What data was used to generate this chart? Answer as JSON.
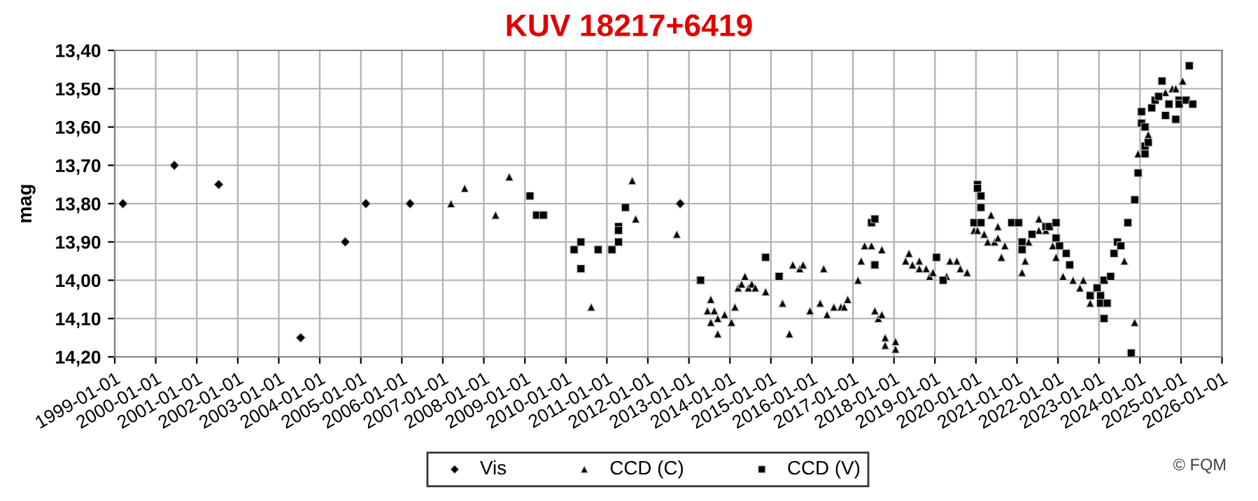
{
  "chart_data": {
    "type": "scatter",
    "title": "KUV 18217+6419",
    "ylabel": "mag",
    "xlim": [
      "1999-01-01",
      "2026-01-01"
    ],
    "xticks": [
      "1999-01-01",
      "2000-01-01",
      "2001-01-01",
      "2002-01-01",
      "2003-01-01",
      "2004-01-01",
      "2005-01-01",
      "2006-01-01",
      "2007-01-01",
      "2008-01-01",
      "2009-01-01",
      "2010-01-01",
      "2011-01-01",
      "2012-01-01",
      "2013-01-01",
      "2014-01-01",
      "2015-01-01",
      "2016-01-01",
      "2017-01-01",
      "2018-01-01",
      "2019-01-01",
      "2020-01-01",
      "2021-01-01",
      "2022-01-01",
      "2023-01-01",
      "2024-01-01",
      "2025-01-01",
      "2026-01-01"
    ],
    "ylim": [
      14.2,
      13.4
    ],
    "yticks": [
      {
        "value": 13.4,
        "label": "13,40"
      },
      {
        "value": 13.5,
        "label": "13,50"
      },
      {
        "value": 13.6,
        "label": "13,60"
      },
      {
        "value": 13.7,
        "label": "13,70"
      },
      {
        "value": 13.8,
        "label": "13,80"
      },
      {
        "value": 13.9,
        "label": "13,90"
      },
      {
        "value": 14.0,
        "label": "14,00"
      },
      {
        "value": 14.1,
        "label": "14,10"
      },
      {
        "value": 14.2,
        "label": "14,20"
      }
    ],
    "grid": true,
    "legend": "bottom",
    "annotations": [
      "© FQM"
    ],
    "series": [
      {
        "name": "Vis",
        "color": "#000000",
        "marker": "diamond",
        "x": [
          "1999-03",
          "2000-06",
          "2001-07",
          "2003-07",
          "2004-08",
          "2005-02",
          "2006-03",
          "2012-10"
        ],
        "values": [
          13.8,
          13.7,
          13.75,
          14.15,
          13.9,
          13.8,
          13.8,
          13.8
        ]
      },
      {
        "name": "CCD (C)",
        "color": "#000000",
        "marker": "triangle",
        "x": [
          "2007-03",
          "2007-07",
          "2008-04",
          "2008-08",
          "2010-08",
          "2011-08",
          "2011-09",
          "2012-09",
          "2013-06",
          "2013-07",
          "2013-07",
          "2013-08",
          "2013-09",
          "2013-09",
          "2013-11",
          "2014-01",
          "2014-02",
          "2014-03",
          "2014-04",
          "2014-05",
          "2014-06",
          "2014-07",
          "2014-08",
          "2014-11",
          "2015-04",
          "2015-06",
          "2015-07",
          "2015-09",
          "2015-10",
          "2015-12",
          "2016-03",
          "2016-04",
          "2016-05",
          "2016-07",
          "2016-09",
          "2016-10",
          "2016-11",
          "2017-02",
          "2017-03",
          "2017-04",
          "2017-06",
          "2017-07",
          "2017-08",
          "2017-09",
          "2017-09",
          "2017-10",
          "2017-10",
          "2018-01",
          "2018-01",
          "2018-04",
          "2018-05",
          "2018-06",
          "2018-08",
          "2018-08",
          "2018-10",
          "2018-11",
          "2018-12",
          "2019-04",
          "2019-05",
          "2019-07",
          "2019-08",
          "2019-10",
          "2019-12",
          "2020-01",
          "2020-03",
          "2020-04",
          "2020-05",
          "2020-06",
          "2020-07",
          "2020-07",
          "2020-08",
          "2020-09",
          "2021-02",
          "2021-03",
          "2021-04",
          "2021-07",
          "2021-07",
          "2021-09",
          "2021-11",
          "2021-12",
          "2022-02",
          "2022-05",
          "2022-07",
          "2022-08",
          "2022-10",
          "2023-08",
          "2023-11",
          "2023-12",
          "2024-03",
          "2024-08",
          "2024-10",
          "2024-11",
          "2025-01"
        ],
        "values": [
          13.8,
          13.76,
          13.83,
          13.73,
          14.07,
          13.74,
          13.84,
          13.88,
          14.08,
          14.11,
          14.05,
          14.08,
          14.14,
          14.1,
          14.09,
          14.11,
          14.07,
          14.02,
          14.01,
          13.99,
          14.02,
          14.01,
          14.02,
          14.03,
          14.06,
          14.14,
          13.96,
          13.97,
          13.96,
          14.08,
          14.06,
          13.97,
          14.09,
          14.07,
          14.07,
          14.07,
          14.05,
          14.0,
          13.95,
          13.91,
          13.91,
          14.08,
          14.1,
          13.92,
          14.09,
          14.17,
          14.15,
          14.16,
          14.18,
          13.95,
          13.93,
          13.96,
          13.97,
          13.95,
          13.97,
          13.99,
          13.98,
          13.99,
          13.95,
          13.95,
          13.97,
          13.98,
          13.87,
          13.87,
          13.88,
          13.9,
          13.83,
          13.9,
          13.86,
          13.89,
          13.94,
          13.91,
          13.98,
          13.95,
          13.9,
          13.84,
          13.87,
          13.87,
          13.91,
          13.94,
          13.99,
          14.0,
          14.02,
          14.0,
          14.06,
          13.95,
          14.11,
          13.67,
          13.62,
          13.51,
          13.5,
          13.5,
          13.48
        ]
      },
      {
        "name": "CCD (V)",
        "color": "#000000",
        "marker": "square",
        "x": [
          "2009-02",
          "2009-04",
          "2009-06",
          "2010-03",
          "2010-05",
          "2010-05",
          "2010-10",
          "2011-02",
          "2011-04",
          "2011-04",
          "2011-04",
          "2011-06",
          "2013-04",
          "2014-11",
          "2015-03",
          "2017-06",
          "2017-07",
          "2017-07",
          "2019-01",
          "2019-03",
          "2019-12",
          "2020-01",
          "2020-01",
          "2020-02",
          "2020-02",
          "2020-02",
          "2020-11",
          "2021-01",
          "2021-02",
          "2021-02",
          "2021-05",
          "2021-09",
          "2021-10",
          "2021-12",
          "2021-12",
          "2022-01",
          "2022-03",
          "2022-04",
          "2022-10",
          "2022-12",
          "2023-01",
          "2023-01",
          "2023-02",
          "2023-02",
          "2023-03",
          "2023-04",
          "2023-05",
          "2023-06",
          "2023-07",
          "2023-09",
          "2023-10",
          "2023-11",
          "2023-12",
          "2024-01",
          "2024-01",
          "2024-02",
          "2024-02",
          "2024-02",
          "2024-03",
          "2024-04",
          "2024-05",
          "2024-06",
          "2024-07",
          "2024-08",
          "2024-09",
          "2024-11",
          "2024-12",
          "2024-12",
          "2025-02",
          "2025-03",
          "2025-04"
        ],
        "values": [
          13.78,
          13.83,
          13.83,
          13.92,
          13.9,
          13.97,
          13.92,
          13.92,
          13.86,
          13.9,
          13.87,
          13.81,
          14.0,
          13.94,
          13.99,
          13.85,
          13.84,
          13.96,
          13.94,
          14.0,
          13.85,
          13.75,
          13.76,
          13.78,
          13.85,
          13.81,
          13.85,
          13.85,
          13.9,
          13.92,
          13.88,
          13.86,
          13.86,
          13.85,
          13.89,
          13.91,
          13.93,
          13.96,
          14.04,
          14.02,
          14.04,
          14.06,
          14.1,
          14.0,
          14.06,
          13.99,
          13.93,
          13.9,
          13.91,
          13.85,
          14.19,
          13.79,
          13.72,
          13.59,
          13.56,
          13.6,
          13.67,
          13.65,
          13.64,
          13.55,
          13.53,
          13.52,
          13.48,
          13.57,
          13.54,
          13.58,
          13.53,
          13.54,
          13.53,
          13.44,
          13.54
        ]
      }
    ]
  }
}
